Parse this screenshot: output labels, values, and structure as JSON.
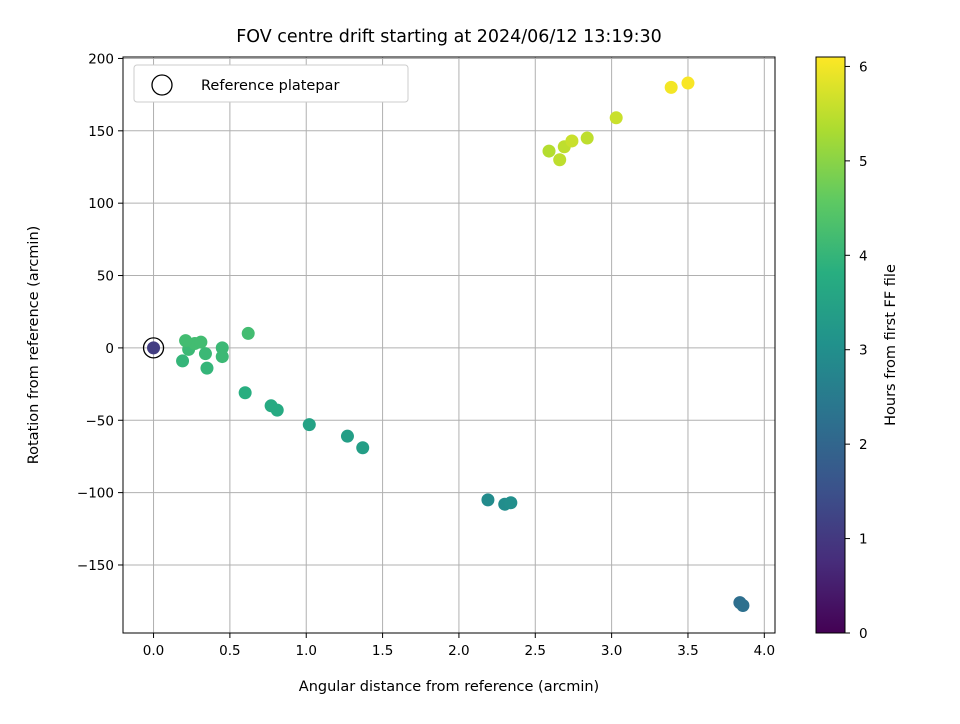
{
  "chart_data": {
    "type": "scatter",
    "title": "FOV centre drift starting at 2024/06/12 13:19:30",
    "xlabel": "Angular distance from reference (arcmin)",
    "ylabel": "Rotation from reference (arcmin)",
    "xlim": [
      -0.2,
      4.07
    ],
    "ylim": [
      -197,
      201
    ],
    "xticks": [
      0.0,
      0.5,
      1.0,
      1.5,
      2.0,
      2.5,
      3.0,
      3.5,
      4.0
    ],
    "xtick_labels": [
      "0.0",
      "0.5",
      "1.0",
      "1.5",
      "2.0",
      "2.5",
      "3.0",
      "3.5",
      "4.0"
    ],
    "yticks": [
      -150,
      -100,
      -50,
      0,
      50,
      100,
      150,
      200
    ],
    "ytick_labels": [
      "−150",
      "−100",
      "−50",
      "0",
      "50",
      "100",
      "150",
      "200"
    ],
    "grid": true,
    "colormap": "viridis",
    "colorbar": {
      "label": "Hours from first FF file",
      "range": [
        0,
        6.1
      ],
      "ticks": [
        0,
        1,
        2,
        3,
        4,
        5,
        6
      ],
      "tick_labels": [
        "0",
        "1",
        "2",
        "3",
        "4",
        "5",
        "6"
      ]
    },
    "legend": {
      "position": "top-left",
      "entries": [
        "Reference platepar"
      ]
    },
    "reference_point": {
      "x": 0.0,
      "y": 0.0
    },
    "points": [
      {
        "x": 0.0,
        "y": 0.0,
        "hours": 1.1
      },
      {
        "x": 3.84,
        "y": -176,
        "hours": 2.2
      },
      {
        "x": 3.86,
        "y": -178,
        "hours": 2.25
      },
      {
        "x": 2.19,
        "y": -105,
        "hours": 2.9
      },
      {
        "x": 2.3,
        "y": -108,
        "hours": 2.95
      },
      {
        "x": 2.34,
        "y": -107,
        "hours": 3.0
      },
      {
        "x": 1.37,
        "y": -69,
        "hours": 3.4
      },
      {
        "x": 1.27,
        "y": -61,
        "hours": 3.4
      },
      {
        "x": 1.02,
        "y": -53,
        "hours": 3.5
      },
      {
        "x": 0.81,
        "y": -43,
        "hours": 3.7
      },
      {
        "x": 0.77,
        "y": -40,
        "hours": 3.7
      },
      {
        "x": 0.6,
        "y": -31,
        "hours": 3.8
      },
      {
        "x": 0.19,
        "y": -9,
        "hours": 4.0
      },
      {
        "x": 0.35,
        "y": -14,
        "hours": 4.0
      },
      {
        "x": 0.23,
        "y": -1,
        "hours": 4.1
      },
      {
        "x": 0.34,
        "y": -4,
        "hours": 4.1
      },
      {
        "x": 0.45,
        "y": -6,
        "hours": 4.1
      },
      {
        "x": 0.45,
        "y": 0,
        "hours": 4.1
      },
      {
        "x": 0.27,
        "y": 3,
        "hours": 4.2
      },
      {
        "x": 0.31,
        "y": 4,
        "hours": 4.2
      },
      {
        "x": 0.21,
        "y": 5,
        "hours": 4.2
      },
      {
        "x": 0.62,
        "y": 10,
        "hours": 4.2
      },
      {
        "x": 2.59,
        "y": 136,
        "hours": 5.4
      },
      {
        "x": 2.66,
        "y": 130,
        "hours": 5.5
      },
      {
        "x": 2.69,
        "y": 139,
        "hours": 5.5
      },
      {
        "x": 2.74,
        "y": 143,
        "hours": 5.6
      },
      {
        "x": 2.84,
        "y": 145,
        "hours": 5.5
      },
      {
        "x": 3.03,
        "y": 159,
        "hours": 5.6
      },
      {
        "x": 3.39,
        "y": 180,
        "hours": 6.0
      },
      {
        "x": 3.5,
        "y": 183,
        "hours": 6.05
      }
    ]
  }
}
